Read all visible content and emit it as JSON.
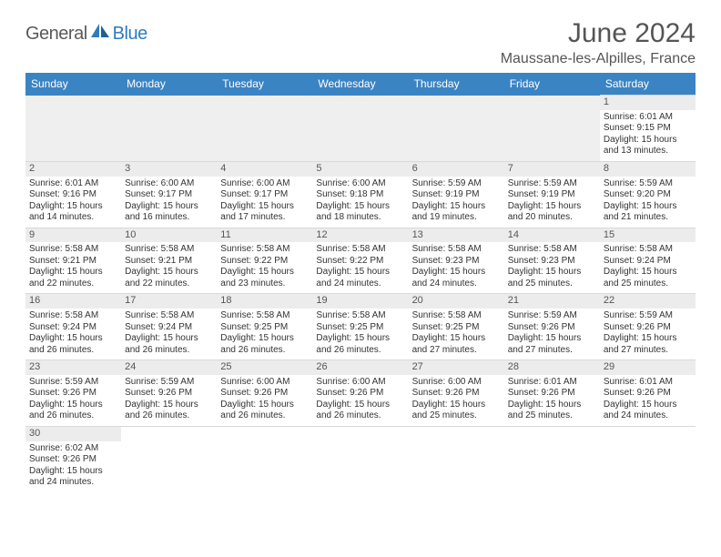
{
  "brand": {
    "part1": "General",
    "part2": "Blue"
  },
  "title": "June 2024",
  "location": "Maussane-les-Alpilles, France",
  "colors": {
    "header_bg": "#3b84c4",
    "header_text": "#ffffff",
    "row_border": "#3b84c4",
    "daynum_bg": "#ececec",
    "brand_gray": "#5a5a5a",
    "brand_blue": "#2f7bbf"
  },
  "weekdays": [
    "Sunday",
    "Monday",
    "Tuesday",
    "Wednesday",
    "Thursday",
    "Friday",
    "Saturday"
  ],
  "weeks": [
    [
      null,
      null,
      null,
      null,
      null,
      null,
      {
        "n": "1",
        "sr": "Sunrise: 6:01 AM",
        "ss": "Sunset: 9:15 PM",
        "d1": "Daylight: 15 hours",
        "d2": "and 13 minutes."
      }
    ],
    [
      {
        "n": "2",
        "sr": "Sunrise: 6:01 AM",
        "ss": "Sunset: 9:16 PM",
        "d1": "Daylight: 15 hours",
        "d2": "and 14 minutes."
      },
      {
        "n": "3",
        "sr": "Sunrise: 6:00 AM",
        "ss": "Sunset: 9:17 PM",
        "d1": "Daylight: 15 hours",
        "d2": "and 16 minutes."
      },
      {
        "n": "4",
        "sr": "Sunrise: 6:00 AM",
        "ss": "Sunset: 9:17 PM",
        "d1": "Daylight: 15 hours",
        "d2": "and 17 minutes."
      },
      {
        "n": "5",
        "sr": "Sunrise: 6:00 AM",
        "ss": "Sunset: 9:18 PM",
        "d1": "Daylight: 15 hours",
        "d2": "and 18 minutes."
      },
      {
        "n": "6",
        "sr": "Sunrise: 5:59 AM",
        "ss": "Sunset: 9:19 PM",
        "d1": "Daylight: 15 hours",
        "d2": "and 19 minutes."
      },
      {
        "n": "7",
        "sr": "Sunrise: 5:59 AM",
        "ss": "Sunset: 9:19 PM",
        "d1": "Daylight: 15 hours",
        "d2": "and 20 minutes."
      },
      {
        "n": "8",
        "sr": "Sunrise: 5:59 AM",
        "ss": "Sunset: 9:20 PM",
        "d1": "Daylight: 15 hours",
        "d2": "and 21 minutes."
      }
    ],
    [
      {
        "n": "9",
        "sr": "Sunrise: 5:58 AM",
        "ss": "Sunset: 9:21 PM",
        "d1": "Daylight: 15 hours",
        "d2": "and 22 minutes."
      },
      {
        "n": "10",
        "sr": "Sunrise: 5:58 AM",
        "ss": "Sunset: 9:21 PM",
        "d1": "Daylight: 15 hours",
        "d2": "and 22 minutes."
      },
      {
        "n": "11",
        "sr": "Sunrise: 5:58 AM",
        "ss": "Sunset: 9:22 PM",
        "d1": "Daylight: 15 hours",
        "d2": "and 23 minutes."
      },
      {
        "n": "12",
        "sr": "Sunrise: 5:58 AM",
        "ss": "Sunset: 9:22 PM",
        "d1": "Daylight: 15 hours",
        "d2": "and 24 minutes."
      },
      {
        "n": "13",
        "sr": "Sunrise: 5:58 AM",
        "ss": "Sunset: 9:23 PM",
        "d1": "Daylight: 15 hours",
        "d2": "and 24 minutes."
      },
      {
        "n": "14",
        "sr": "Sunrise: 5:58 AM",
        "ss": "Sunset: 9:23 PM",
        "d1": "Daylight: 15 hours",
        "d2": "and 25 minutes."
      },
      {
        "n": "15",
        "sr": "Sunrise: 5:58 AM",
        "ss": "Sunset: 9:24 PM",
        "d1": "Daylight: 15 hours",
        "d2": "and 25 minutes."
      }
    ],
    [
      {
        "n": "16",
        "sr": "Sunrise: 5:58 AM",
        "ss": "Sunset: 9:24 PM",
        "d1": "Daylight: 15 hours",
        "d2": "and 26 minutes."
      },
      {
        "n": "17",
        "sr": "Sunrise: 5:58 AM",
        "ss": "Sunset: 9:24 PM",
        "d1": "Daylight: 15 hours",
        "d2": "and 26 minutes."
      },
      {
        "n": "18",
        "sr": "Sunrise: 5:58 AM",
        "ss": "Sunset: 9:25 PM",
        "d1": "Daylight: 15 hours",
        "d2": "and 26 minutes."
      },
      {
        "n": "19",
        "sr": "Sunrise: 5:58 AM",
        "ss": "Sunset: 9:25 PM",
        "d1": "Daylight: 15 hours",
        "d2": "and 26 minutes."
      },
      {
        "n": "20",
        "sr": "Sunrise: 5:58 AM",
        "ss": "Sunset: 9:25 PM",
        "d1": "Daylight: 15 hours",
        "d2": "and 27 minutes."
      },
      {
        "n": "21",
        "sr": "Sunrise: 5:59 AM",
        "ss": "Sunset: 9:26 PM",
        "d1": "Daylight: 15 hours",
        "d2": "and 27 minutes."
      },
      {
        "n": "22",
        "sr": "Sunrise: 5:59 AM",
        "ss": "Sunset: 9:26 PM",
        "d1": "Daylight: 15 hours",
        "d2": "and 27 minutes."
      }
    ],
    [
      {
        "n": "23",
        "sr": "Sunrise: 5:59 AM",
        "ss": "Sunset: 9:26 PM",
        "d1": "Daylight: 15 hours",
        "d2": "and 26 minutes."
      },
      {
        "n": "24",
        "sr": "Sunrise: 5:59 AM",
        "ss": "Sunset: 9:26 PM",
        "d1": "Daylight: 15 hours",
        "d2": "and 26 minutes."
      },
      {
        "n": "25",
        "sr": "Sunrise: 6:00 AM",
        "ss": "Sunset: 9:26 PM",
        "d1": "Daylight: 15 hours",
        "d2": "and 26 minutes."
      },
      {
        "n": "26",
        "sr": "Sunrise: 6:00 AM",
        "ss": "Sunset: 9:26 PM",
        "d1": "Daylight: 15 hours",
        "d2": "and 26 minutes."
      },
      {
        "n": "27",
        "sr": "Sunrise: 6:00 AM",
        "ss": "Sunset: 9:26 PM",
        "d1": "Daylight: 15 hours",
        "d2": "and 25 minutes."
      },
      {
        "n": "28",
        "sr": "Sunrise: 6:01 AM",
        "ss": "Sunset: 9:26 PM",
        "d1": "Daylight: 15 hours",
        "d2": "and 25 minutes."
      },
      {
        "n": "29",
        "sr": "Sunrise: 6:01 AM",
        "ss": "Sunset: 9:26 PM",
        "d1": "Daylight: 15 hours",
        "d2": "and 24 minutes."
      }
    ],
    [
      {
        "n": "30",
        "sr": "Sunrise: 6:02 AM",
        "ss": "Sunset: 9:26 PM",
        "d1": "Daylight: 15 hours",
        "d2": "and 24 minutes."
      },
      null,
      null,
      null,
      null,
      null,
      null
    ]
  ]
}
